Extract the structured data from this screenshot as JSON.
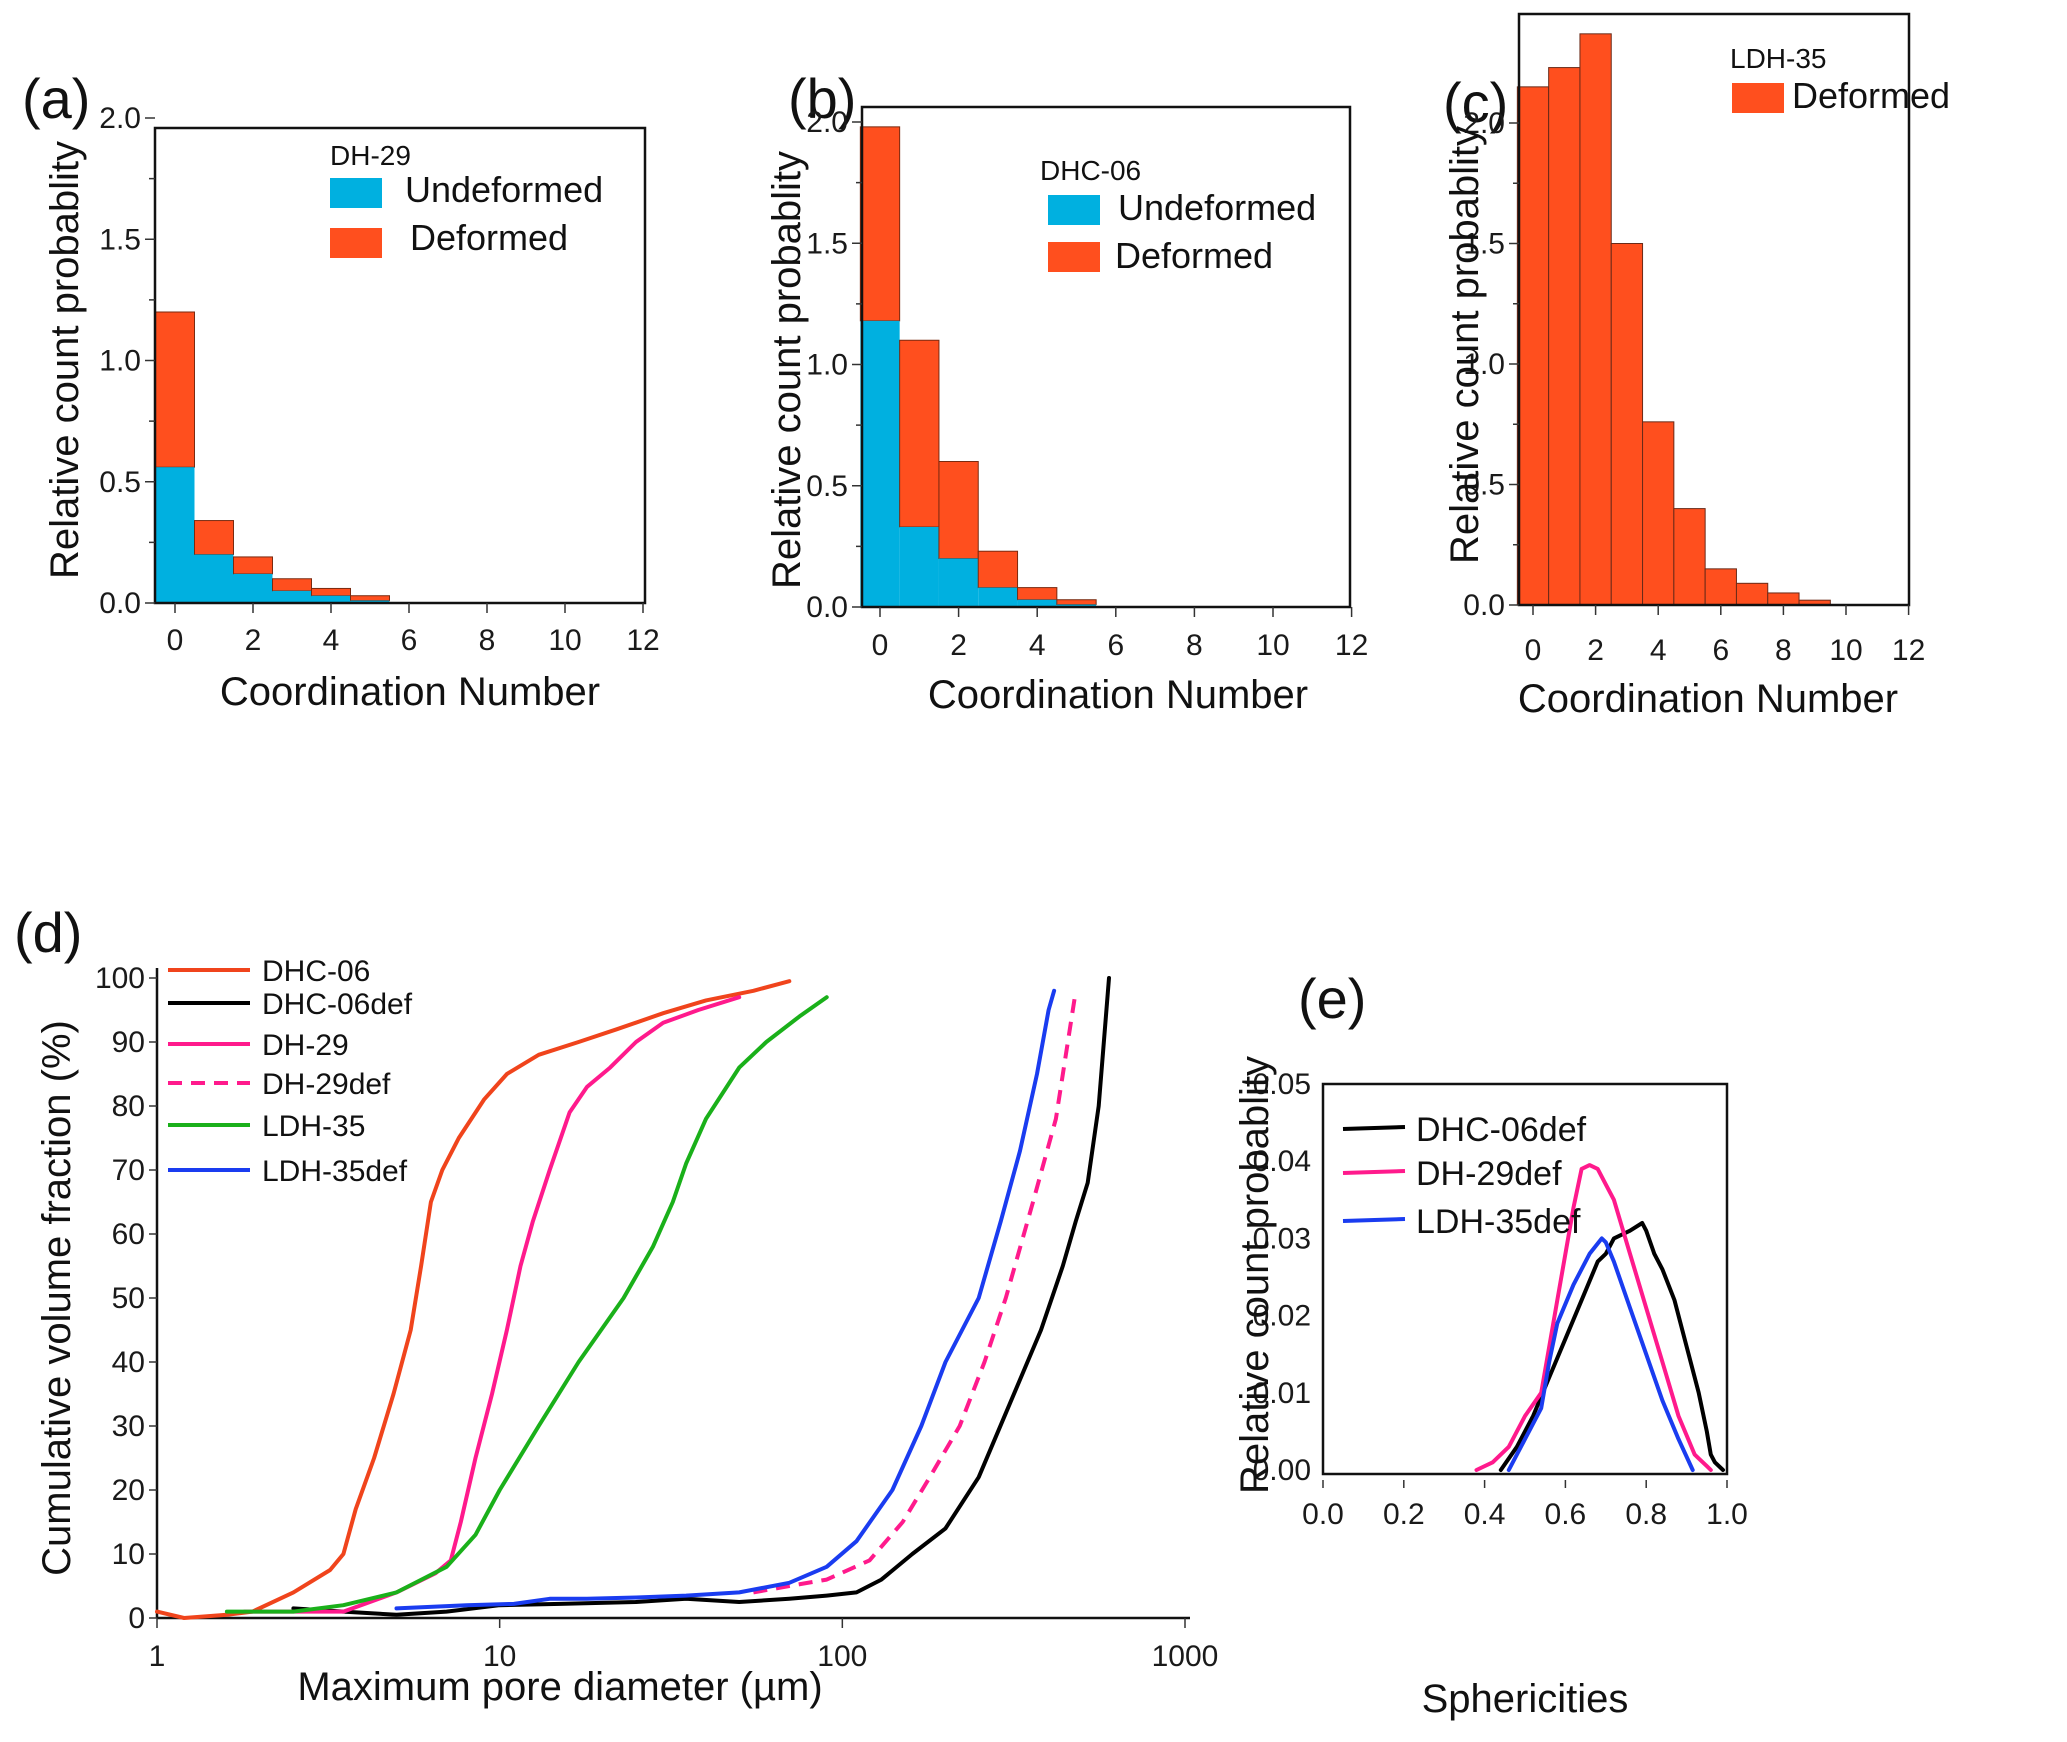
{
  "colors": {
    "undeformed": "#00b0e0",
    "deformed": "#ff4f1e",
    "DHC-06": "#f0441c",
    "DHC-06def": "#000000",
    "DH-29": "#ff1a8c",
    "DH-29def": "#ff1a8c",
    "LDH-35": "#1ab01a",
    "LDH-35def": "#1a3cf0"
  },
  "chart_data": [
    {
      "panel": "(a)",
      "type": "bar",
      "stacked": true,
      "sample": "DH-29",
      "xlabel": "Coordination  Number",
      "ylabel": "Relative count probablity",
      "xlim": [
        -0.5,
        12
      ],
      "ylim": [
        0,
        2.0
      ],
      "xticks": [
        "0",
        "2",
        "4",
        "6",
        "8",
        "10",
        "12"
      ],
      "yticks": [
        "0.0",
        "0.5",
        "1.0",
        "1.5",
        "2.0"
      ],
      "categories": [
        0,
        1,
        2,
        3,
        4,
        5
      ],
      "series": [
        {
          "name": "Undeformed",
          "values": [
            0.56,
            0.2,
            0.12,
            0.05,
            0.03,
            0.01
          ]
        },
        {
          "name": "Deformed",
          "values": [
            0.64,
            0.14,
            0.07,
            0.05,
            0.03,
            0.02
          ]
        }
      ],
      "legend": {
        "title": "DH-29",
        "items": [
          "Undeformed",
          "Deformed"
        ],
        "placement": "top-right"
      }
    },
    {
      "panel": "(b)",
      "type": "bar",
      "stacked": true,
      "sample": "DHC-06",
      "xlabel": "Coordination  Number",
      "ylabel": "Relative count probablity",
      "xlim": [
        -0.5,
        12
      ],
      "ylim": [
        0,
        2.0
      ],
      "xticks": [
        "0",
        "2",
        "4",
        "6",
        "8",
        "10",
        "12"
      ],
      "yticks": [
        "0.0",
        "0.5",
        "1.0",
        "1.5",
        "2.0"
      ],
      "categories": [
        0,
        1,
        2,
        3,
        4,
        5
      ],
      "series": [
        {
          "name": "Undeformed",
          "values": [
            1.18,
            0.33,
            0.2,
            0.08,
            0.03,
            0.01
          ]
        },
        {
          "name": "Deformed",
          "values": [
            0.8,
            0.77,
            0.4,
            0.15,
            0.05,
            0.02
          ]
        }
      ],
      "legend": {
        "title": "DHC-06",
        "items": [
          "Undeformed",
          "Deformed"
        ],
        "placement": "top-right"
      }
    },
    {
      "panel": "(c)",
      "type": "bar",
      "stacked": false,
      "sample": "LDH-35",
      "xlabel": "Coordination  Number",
      "ylabel": "Relative count probablity",
      "xlim": [
        -0.5,
        12
      ],
      "ylim": [
        0,
        2.4
      ],
      "xticks": [
        "0",
        "2",
        "4",
        "6",
        "8",
        "10",
        "12"
      ],
      "yticks": [
        "0.0",
        "0.5",
        "1.0",
        "1.5",
        "2.0"
      ],
      "categories": [
        0,
        1,
        2,
        3,
        4,
        5,
        6,
        7,
        8,
        9
      ],
      "series": [
        {
          "name": "Deformed",
          "values": [
            2.15,
            2.23,
            2.37,
            1.5,
            0.76,
            0.4,
            0.15,
            0.09,
            0.05,
            0.02
          ]
        }
      ],
      "legend": {
        "title": "LDH-35",
        "items": [
          "Deformed"
        ],
        "placement": "top-right"
      }
    },
    {
      "panel": "(d)",
      "type": "line",
      "xscale": "log",
      "xlabel": "Maximum pore diameter (µm)",
      "ylabel": "Cumulative volume fraction (%)",
      "xlim": [
        1,
        1000
      ],
      "ylim": [
        0,
        100
      ],
      "xticks": [
        "1",
        "10",
        "100",
        "1000"
      ],
      "yticks": [
        "0",
        "10",
        "20",
        "30",
        "40",
        "50",
        "60",
        "70",
        "80",
        "90",
        "100"
      ],
      "series": [
        {
          "name": "DHC-06",
          "style": "solid",
          "x": [
            1,
            1.2,
            1.6,
            1.9,
            2.5,
            3.2,
            3.5,
            3.8,
            4.3,
            4.9,
            5.5,
            5.9,
            6.3,
            6.8,
            7.6,
            9,
            10.5,
            13,
            17,
            22,
            30,
            40,
            55,
            70
          ],
          "y": [
            1,
            0,
            0.5,
            1,
            4,
            7.5,
            10,
            17,
            25,
            35,
            45,
            55,
            65,
            70,
            75,
            81,
            85,
            88,
            90,
            92,
            94.5,
            96.5,
            98,
            99.5
          ]
        },
        {
          "name": "DHC-06def",
          "style": "solid",
          "x": [
            2.5,
            3.5,
            5,
            7,
            10,
            15,
            25,
            35,
            50,
            70,
            90,
            110,
            130,
            160,
            200,
            250,
            300,
            380,
            440,
            480,
            520,
            560,
            600
          ],
          "y": [
            1.5,
            1,
            0.5,
            1,
            2,
            2.2,
            2.5,
            3,
            2.5,
            3,
            3.5,
            4,
            6,
            10,
            14,
            22,
            32,
            45,
            55,
            62,
            68,
            80,
            100
          ]
        },
        {
          "name": "DH-29",
          "style": "solid",
          "x": [
            1.8,
            2.2,
            3.5,
            5,
            6.5,
            7.2,
            7.7,
            8.5,
            9.5,
            10.5,
            11.5,
            12.5,
            14,
            16,
            18,
            21,
            25,
            30,
            38,
            50
          ],
          "y": [
            1,
            1,
            1,
            4,
            7,
            9,
            15,
            25,
            35,
            45,
            55,
            62,
            70,
            79,
            83,
            86,
            90,
            93,
            95,
            97
          ]
        },
        {
          "name": "DH-29def",
          "style": "dashed",
          "x": [
            55,
            70,
            90,
            120,
            150,
            180,
            220,
            260,
            300,
            360,
            420,
            480
          ],
          "y": [
            4,
            5,
            6,
            9,
            15,
            22,
            30,
            40,
            50,
            65,
            78,
            98
          ]
        },
        {
          "name": "LDH-35",
          "style": "solid",
          "x": [
            1.6,
            2.5,
            3.5,
            5,
            7,
            8.5,
            10,
            13,
            17,
            23,
            28,
            32,
            35,
            40,
            50,
            60,
            75,
            90
          ],
          "y": [
            1,
            1,
            2,
            4,
            8,
            13,
            20,
            30,
            40,
            50,
            58,
            65,
            71,
            78,
            86,
            90,
            94,
            97
          ]
        },
        {
          "name": "LDH-35def",
          "style": "solid",
          "x": [
            5,
            8,
            11,
            14,
            18,
            25,
            35,
            50,
            70,
            90,
            110,
            140,
            170,
            200,
            250,
            290,
            330,
            370,
            400,
            415
          ],
          "y": [
            1.5,
            2,
            2.2,
            3,
            3,
            3.2,
            3.5,
            4,
            5.5,
            8,
            12,
            20,
            30,
            40,
            50,
            62,
            73,
            85,
            95,
            98
          ]
        }
      ],
      "legend": {
        "items": [
          "DHC-06",
          "DHC-06def",
          "DH-29",
          "DH-29def",
          "LDH-35",
          "LDH-35def"
        ],
        "placement": "top-left"
      }
    },
    {
      "panel": "(e)",
      "type": "line",
      "xlabel": "Sphericities",
      "ylabel": "Relative count probablity",
      "xlim": [
        0.0,
        1.0
      ],
      "ylim": [
        0.0,
        0.05
      ],
      "xticks": [
        "0.0",
        "0.2",
        "0.4",
        "0.6",
        "0.8",
        "1.0"
      ],
      "yticks": [
        "0.00",
        "0.01",
        "0.02",
        "0.03",
        "0.04",
        "0.05"
      ],
      "series": [
        {
          "name": "DHC-06def",
          "x": [
            0.44,
            0.48,
            0.52,
            0.56,
            0.6,
            0.64,
            0.68,
            0.7,
            0.72,
            0.76,
            0.79,
            0.8,
            0.82,
            0.84,
            0.87,
            0.9,
            0.93,
            0.95,
            0.96,
            0.97,
            0.99
          ],
          "y": [
            0.0,
            0.003,
            0.007,
            0.012,
            0.017,
            0.022,
            0.027,
            0.028,
            0.03,
            0.031,
            0.032,
            0.031,
            0.028,
            0.026,
            0.022,
            0.016,
            0.01,
            0.005,
            0.002,
            0.001,
            0.0
          ]
        },
        {
          "name": "DH-29def",
          "x": [
            0.38,
            0.42,
            0.46,
            0.5,
            0.54,
            0.58,
            0.62,
            0.64,
            0.66,
            0.68,
            0.7,
            0.72,
            0.76,
            0.8,
            0.84,
            0.88,
            0.92,
            0.93,
            0.95,
            0.96
          ],
          "y": [
            0.0,
            0.001,
            0.003,
            0.007,
            0.01,
            0.022,
            0.034,
            0.039,
            0.0395,
            0.039,
            0.037,
            0.035,
            0.028,
            0.021,
            0.014,
            0.007,
            0.002,
            0.0015,
            0.0005,
            0.0
          ]
        },
        {
          "name": "LDH-35def",
          "x": [
            0.46,
            0.5,
            0.54,
            0.56,
            0.58,
            0.62,
            0.66,
            0.69,
            0.7,
            0.72,
            0.76,
            0.8,
            0.84,
            0.88,
            0.915
          ],
          "y": [
            0.0,
            0.004,
            0.008,
            0.014,
            0.019,
            0.024,
            0.028,
            0.03,
            0.0295,
            0.027,
            0.021,
            0.015,
            0.009,
            0.004,
            0.0
          ]
        }
      ],
      "legend": {
        "items": [
          "DHC-06def",
          "DH-29def",
          "LDH-35def"
        ],
        "placement": "top-left"
      }
    }
  ],
  "panels": {
    "a": {
      "label": "(a)"
    },
    "b": {
      "label": "(b)"
    },
    "c": {
      "label": "(c)"
    },
    "d": {
      "label": "(d)"
    },
    "e": {
      "label": "(e)"
    }
  }
}
